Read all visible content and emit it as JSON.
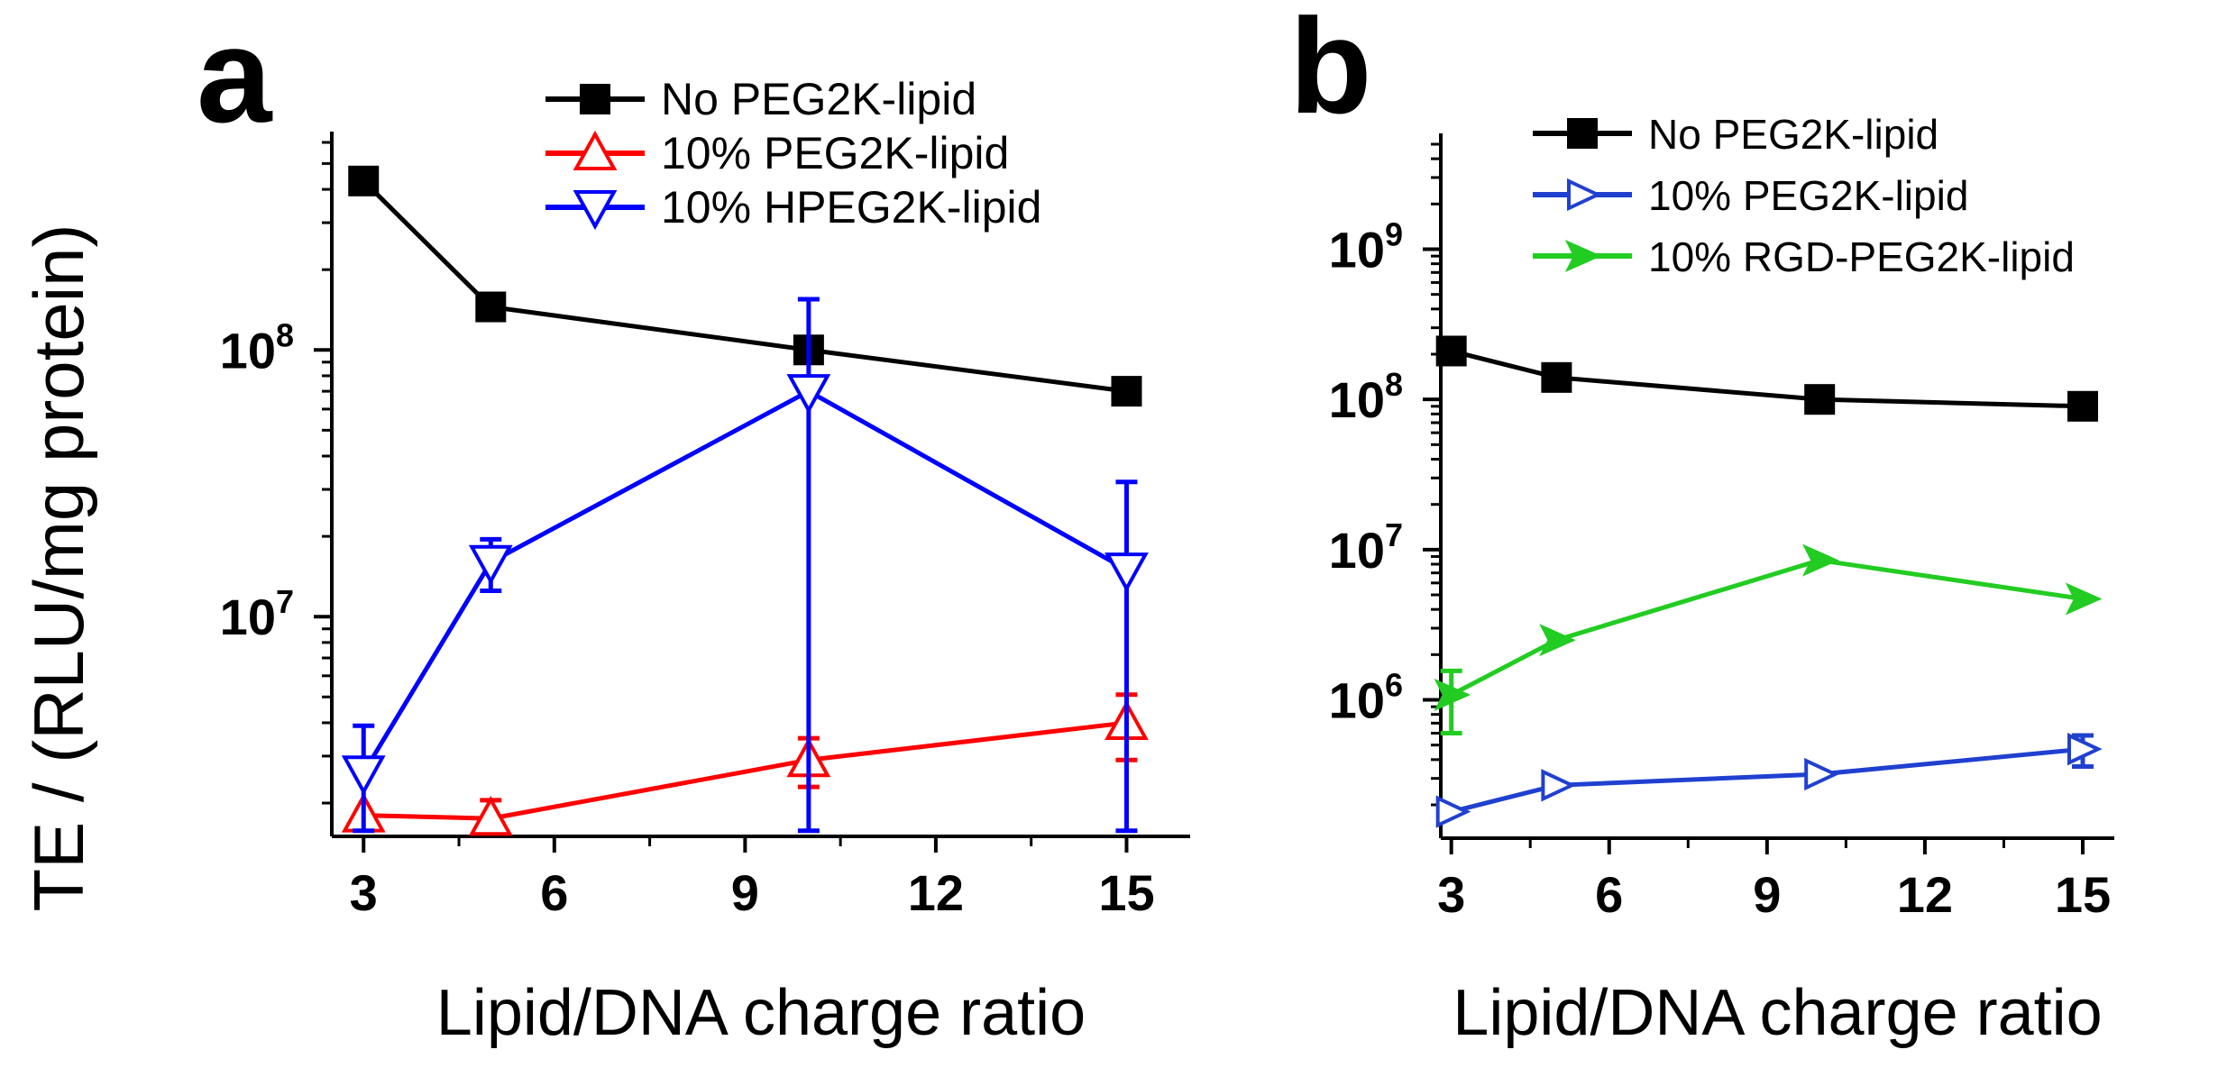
{
  "y_axis_title": "TE / (RLU/mg protein)",
  "chart_data": [
    {
      "panel": "a",
      "type": "line",
      "yscale": "log",
      "xlabel": "Lipid/DNA charge ratio",
      "ylabel": "TE / (RLU/mg protein)",
      "x": [
        3,
        5,
        10,
        15
      ],
      "xticks": [
        3,
        6,
        9,
        12,
        15
      ],
      "xlim": [
        2.5,
        16
      ],
      "ylim": [
        1500000,
        600000000
      ],
      "yticks": [
        {
          "value": 10000000,
          "base": "10",
          "exp": "7"
        },
        {
          "value": 100000000,
          "base": "10",
          "exp": "8"
        }
      ],
      "legend_position": "top-right",
      "series": [
        {
          "name": "No PEG2K-lipid",
          "color": "#000000",
          "marker": "square",
          "values": [
            430000000,
            145000000,
            100000000,
            70000000
          ],
          "err": [
            0,
            0,
            0,
            0
          ]
        },
        {
          "name": "10% PEG2K-lipid",
          "color": "#ff0000",
          "marker": "triangle-up",
          "values": [
            1800000,
            1750000,
            2900000,
            4000000
          ],
          "err": [
            0,
            300000,
            600000,
            1100000
          ]
        },
        {
          "name": "10% HPEG2K-lipid",
          "color": "#0000ff",
          "marker": "triangle-down",
          "values": [
            2600000,
            16000000,
            70000000,
            15000000
          ],
          "err": [
            1300000,
            3500000,
            85000000,
            17000000
          ]
        }
      ]
    },
    {
      "panel": "b",
      "type": "line",
      "yscale": "log",
      "xlabel": "Lipid/DNA charge ratio",
      "ylabel": "",
      "x": [
        3,
        5,
        10,
        15
      ],
      "xticks": [
        3,
        6,
        9,
        12,
        15
      ],
      "xlim": [
        2.8,
        15.6
      ],
      "ylim": [
        120000,
        5000000000
      ],
      "yticks": [
        {
          "value": 1000000,
          "base": "10",
          "exp": "6"
        },
        {
          "value": 10000000,
          "base": "10",
          "exp": "7"
        },
        {
          "value": 100000000,
          "base": "10",
          "exp": "8"
        },
        {
          "value": 1000000000,
          "base": "10",
          "exp": "9"
        }
      ],
      "legend_position": "top-right",
      "series": [
        {
          "name": "No PEG2K-lipid",
          "color": "#000000",
          "marker": "square",
          "values": [
            210000000,
            140000000,
            100000000,
            90000000
          ],
          "err": [
            0,
            0,
            0,
            0
          ]
        },
        {
          "name": "10% PEG2K-lipid",
          "color": "#2040d0",
          "marker": "triangle-right",
          "values": [
            180000,
            270000,
            320000,
            470000
          ],
          "err": [
            0,
            0,
            0,
            110000
          ]
        },
        {
          "name": "10% RGD-PEG2K-lipid",
          "color": "#22cc22",
          "marker": "arrow-right",
          "values": [
            1080000,
            2500000,
            8500000,
            4700000
          ],
          "err": [
            480000,
            0,
            0,
            0
          ]
        }
      ]
    }
  ]
}
